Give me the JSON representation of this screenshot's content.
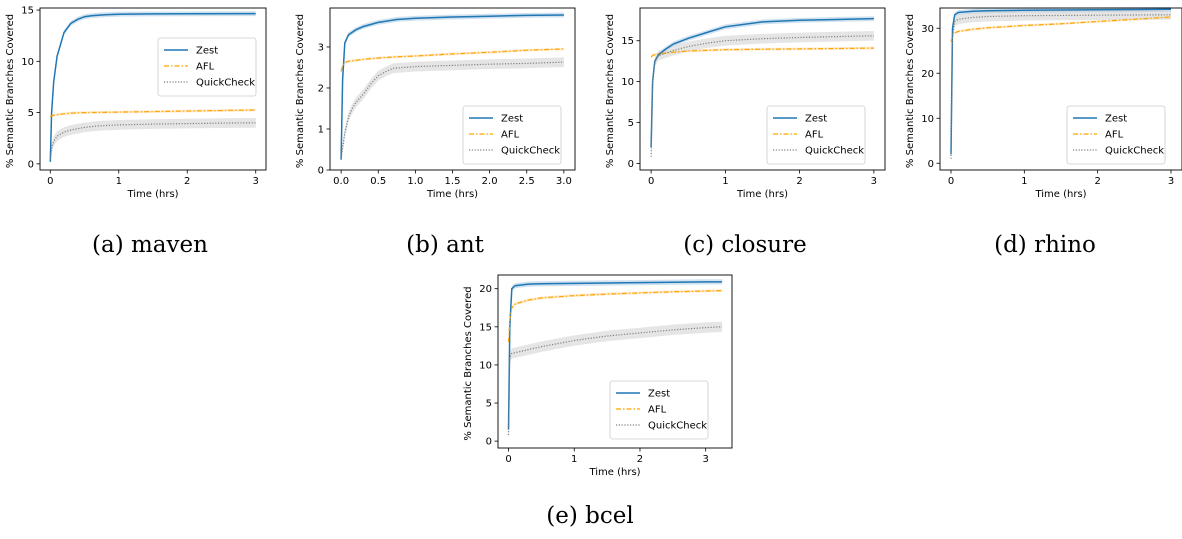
{
  "figure": {
    "captions": [
      "(a) maven",
      "(b) ant",
      "(c) closure",
      "(d) rhino",
      "(e) bcel"
    ]
  },
  "style": {
    "zest_color": "#1f77b4",
    "afl_color": "#ffa500",
    "quickcheck_color": "#808080",
    "band_color": "#cfcfcf"
  },
  "chart_data": [
    {
      "type": "line",
      "title": "",
      "caption": "(a) maven",
      "xlabel": "Time (hrs)",
      "ylabel": "% Semantic Branches Covered",
      "xlim": [
        -0.15,
        3.15
      ],
      "ylim": [
        -0.6,
        15.2
      ],
      "xticks": [
        0,
        1,
        2,
        3
      ],
      "xtick_labels": [
        "0",
        "1",
        "2",
        "3"
      ],
      "yticks": [
        0,
        5,
        10,
        15
      ],
      "ytick_labels": [
        "0",
        "5",
        "10",
        "15"
      ],
      "legend": "center-right",
      "grid": false,
      "series": [
        {
          "name": "Zest",
          "style": "solid",
          "x": [
            0,
            0.02,
            0.05,
            0.1,
            0.2,
            0.3,
            0.4,
            0.5,
            0.6,
            0.8,
            1.0,
            1.5,
            2.0,
            3.0
          ],
          "y": [
            0.2,
            5.0,
            8.0,
            10.5,
            12.8,
            13.7,
            14.1,
            14.35,
            14.45,
            14.55,
            14.6,
            14.62,
            14.63,
            14.65
          ]
        },
        {
          "name": "AFL",
          "style": "dashdot",
          "x": [
            0,
            0.02,
            0.1,
            0.3,
            0.5,
            1.0,
            1.5,
            2.0,
            2.5,
            3.0
          ],
          "y": [
            4.6,
            4.7,
            4.8,
            4.95,
            5.0,
            5.05,
            5.1,
            5.15,
            5.2,
            5.25
          ]
        },
        {
          "name": "QuickCheck",
          "style": "dotted",
          "x": [
            0,
            0.02,
            0.05,
            0.1,
            0.2,
            0.3,
            0.5,
            0.7,
            1.0,
            1.5,
            2.0,
            2.5,
            3.0
          ],
          "y": [
            0.4,
            1.5,
            2.2,
            2.7,
            3.1,
            3.3,
            3.55,
            3.7,
            3.8,
            3.88,
            3.93,
            3.97,
            4.0
          ]
        }
      ]
    },
    {
      "type": "line",
      "title": "",
      "caption": "(b) ant",
      "xlabel": "Time (hrs)",
      "ylabel": "% Semantic Branches Covered",
      "xlim": [
        -0.15,
        3.15
      ],
      "ylim": [
        0,
        3.95
      ],
      "xticks": [
        0,
        0.5,
        1.0,
        1.5,
        2.0,
        2.5,
        3.0
      ],
      "xtick_labels": [
        "0.0",
        "0.5",
        "1.0",
        "1.5",
        "2.0",
        "2.5",
        "3.0"
      ],
      "yticks": [
        0,
        1,
        2,
        3
      ],
      "ytick_labels": [
        "0",
        "1",
        "2",
        "3"
      ],
      "legend": "lower-right",
      "grid": false,
      "series": [
        {
          "name": "Zest",
          "style": "solid",
          "x": [
            0,
            0.02,
            0.05,
            0.1,
            0.2,
            0.3,
            0.5,
            0.75,
            1.0,
            1.5,
            2.0,
            2.5,
            3.0
          ],
          "y": [
            0.25,
            2.2,
            3.1,
            3.3,
            3.42,
            3.5,
            3.6,
            3.67,
            3.7,
            3.73,
            3.75,
            3.77,
            3.78
          ]
        },
        {
          "name": "AFL",
          "style": "dashdot",
          "x": [
            0,
            0.02,
            0.05,
            0.1,
            0.3,
            0.5,
            0.75,
            1.0,
            1.5,
            2.0,
            2.5,
            3.0
          ],
          "y": [
            2.4,
            2.55,
            2.62,
            2.65,
            2.7,
            2.73,
            2.76,
            2.78,
            2.83,
            2.87,
            2.92,
            2.95
          ]
        },
        {
          "name": "QuickCheck",
          "style": "dotted",
          "x": [
            0,
            0.05,
            0.1,
            0.15,
            0.2,
            0.3,
            0.4,
            0.5,
            0.6,
            0.7,
            1.0,
            1.5,
            2.0,
            2.5,
            3.0
          ],
          "y": [
            0.3,
            0.9,
            1.3,
            1.5,
            1.65,
            1.85,
            2.1,
            2.3,
            2.4,
            2.48,
            2.52,
            2.55,
            2.58,
            2.6,
            2.63
          ]
        }
      ]
    },
    {
      "type": "line",
      "title": "",
      "caption": "(c) closure",
      "xlabel": "Time (hrs)",
      "ylabel": "% Semantic Branches Covered",
      "xlim": [
        -0.15,
        3.15
      ],
      "ylim": [
        -0.8,
        19.0
      ],
      "xticks": [
        0,
        1,
        2,
        3
      ],
      "xtick_labels": [
        "0",
        "1",
        "2",
        "3"
      ],
      "yticks": [
        0,
        5,
        10,
        15
      ],
      "ytick_labels": [
        "0",
        "5",
        "10",
        "15"
      ],
      "legend": "lower-right",
      "grid": false,
      "series": [
        {
          "name": "Zest",
          "style": "solid",
          "x": [
            0,
            0.02,
            0.05,
            0.1,
            0.2,
            0.3,
            0.5,
            0.75,
            1.0,
            1.5,
            2.0,
            2.5,
            3.0
          ],
          "y": [
            2.0,
            10.0,
            12.5,
            13.3,
            14.0,
            14.6,
            15.3,
            16.0,
            16.7,
            17.3,
            17.5,
            17.6,
            17.7
          ]
        },
        {
          "name": "AFL",
          "style": "dashdot",
          "x": [
            0,
            0.02,
            0.05,
            0.1,
            0.3,
            0.5,
            1.0,
            1.5,
            2.0,
            2.5,
            3.0
          ],
          "y": [
            13.0,
            13.2,
            13.3,
            13.4,
            13.6,
            13.75,
            13.9,
            13.97,
            14.0,
            14.05,
            14.1
          ]
        },
        {
          "name": "QuickCheck",
          "style": "dotted",
          "x": [
            0,
            0.02,
            0.05,
            0.1,
            0.3,
            0.5,
            0.75,
            1.0,
            1.5,
            2.0,
            2.5,
            3.0
          ],
          "y": [
            0.8,
            10.0,
            12.5,
            13.2,
            13.8,
            14.3,
            14.7,
            15.0,
            15.25,
            15.4,
            15.5,
            15.6
          ]
        }
      ]
    },
    {
      "type": "line",
      "title": "",
      "caption": "(d) rhino",
      "xlabel": "Time (hrs)",
      "ylabel": "% Semantic Branches Covered",
      "xlim": [
        -0.15,
        3.15
      ],
      "ylim": [
        -1.5,
        34.5
      ],
      "xticks": [
        0,
        1,
        2,
        3
      ],
      "xtick_labels": [
        "0",
        "1",
        "2",
        "3"
      ],
      "yticks": [
        0,
        10,
        20,
        30
      ],
      "ytick_labels": [
        "0",
        "10",
        "20",
        "30"
      ],
      "legend": "lower-right",
      "grid": false,
      "series": [
        {
          "name": "Zest",
          "style": "solid",
          "x": [
            0,
            0.02,
            0.05,
            0.1,
            0.3,
            0.5,
            1.0,
            2.0,
            3.0
          ],
          "y": [
            2.0,
            30.0,
            33.0,
            33.5,
            33.8,
            33.9,
            34.0,
            34.1,
            34.2
          ]
        },
        {
          "name": "AFL",
          "style": "dashdot",
          "x": [
            0,
            0.02,
            0.05,
            0.1,
            0.3,
            0.5,
            1.0,
            1.5,
            2.0,
            2.5,
            3.0
          ],
          "y": [
            27.0,
            28.5,
            29.0,
            29.3,
            29.8,
            30.1,
            30.6,
            31.0,
            31.5,
            32.0,
            32.5
          ]
        },
        {
          "name": "QuickCheck",
          "style": "dotted",
          "x": [
            0,
            0.02,
            0.05,
            0.1,
            0.3,
            0.5,
            1.0,
            2.0,
            3.0
          ],
          "y": [
            1.0,
            28.0,
            31.5,
            32.0,
            32.4,
            32.6,
            32.8,
            32.9,
            33.0
          ]
        }
      ]
    },
    {
      "type": "line",
      "title": "",
      "caption": "(e) bcel",
      "xlabel": "Time (hrs)",
      "ylabel": "% Semantic Branches Covered",
      "xlim": [
        -0.16,
        3.4
      ],
      "ylim": [
        -0.9,
        21.8
      ],
      "xticks": [
        0,
        1,
        2,
        3
      ],
      "xtick_labels": [
        "0",
        "1",
        "2",
        "3"
      ],
      "yticks": [
        0,
        5,
        10,
        15,
        20
      ],
      "ytick_labels": [
        "0",
        "5",
        "10",
        "15",
        "20"
      ],
      "legend": "lower-right",
      "grid": false,
      "series": [
        {
          "name": "Zest",
          "style": "solid",
          "x": [
            0,
            0.02,
            0.05,
            0.1,
            0.3,
            0.5,
            1.0,
            1.5,
            2.0,
            2.5,
            3.0,
            3.25
          ],
          "y": [
            1.5,
            15.0,
            20.0,
            20.4,
            20.6,
            20.65,
            20.7,
            20.75,
            20.8,
            20.85,
            20.9,
            20.9
          ]
        },
        {
          "name": "AFL",
          "style": "dashdot",
          "x": [
            0,
            0.02,
            0.05,
            0.1,
            0.3,
            0.5,
            1.0,
            1.5,
            2.0,
            2.5,
            3.0,
            3.25
          ],
          "y": [
            13.0,
            16.0,
            17.5,
            18.0,
            18.5,
            18.8,
            19.1,
            19.3,
            19.45,
            19.6,
            19.7,
            19.75
          ]
        },
        {
          "name": "QuickCheck",
          "style": "dotted",
          "x": [
            0,
            0.02,
            0.05,
            0.1,
            0.3,
            0.5,
            0.75,
            1.0,
            1.5,
            2.0,
            2.5,
            3.0,
            3.25
          ],
          "y": [
            0.8,
            11.0,
            11.5,
            11.6,
            12.0,
            12.4,
            12.8,
            13.2,
            13.8,
            14.2,
            14.6,
            14.9,
            15.0
          ]
        }
      ]
    }
  ]
}
